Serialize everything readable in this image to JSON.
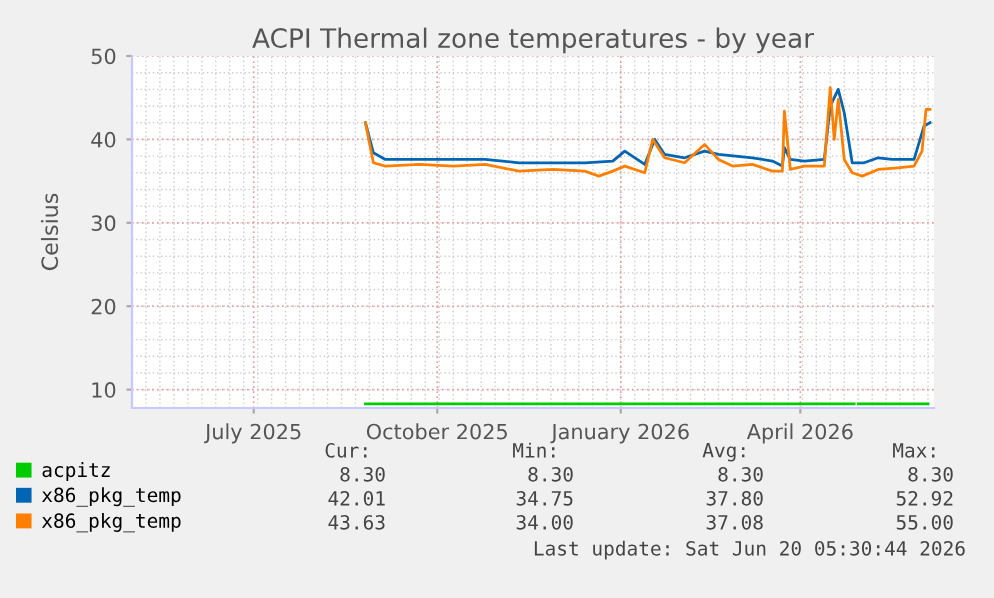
{
  "chart_data": {
    "type": "line",
    "title": "ACPI Thermal zone temperatures - by year",
    "ylabel": "Celsius",
    "xlim": [
      "2025-05-01",
      "2026-06-07"
    ],
    "xticks": [
      {
        "value": "2025-07-01",
        "label": "July 2025"
      },
      {
        "value": "2025-10-01",
        "label": "October 2025"
      },
      {
        "value": "2026-01-01",
        "label": "January 2026"
      },
      {
        "value": "2026-04-01",
        "label": "April 2026"
      }
    ],
    "ylim": [
      7.8,
      50
    ],
    "yticks": [
      10,
      20,
      30,
      40,
      50
    ],
    "grid": true,
    "legend": "bottom",
    "marker": "none",
    "line_style": "solid",
    "series": [
      {
        "name": "acpitz",
        "color": "#00cc00",
        "x": [
          "2025-08-26",
          "2026-04-28",
          "2026-04-29",
          "2026-04-30",
          "2026-06-04"
        ],
        "values": [
          8.3,
          8.3,
          null,
          8.3,
          8.3
        ]
      },
      {
        "name": "x86_pkg_temp",
        "color": "#0066b3",
        "x": [
          "2025-08-26",
          "2025-08-30",
          "2025-09-05",
          "2025-09-22",
          "2025-10-09",
          "2025-10-25",
          "2025-11-11",
          "2025-11-28",
          "2025-12-14",
          "2025-12-28",
          "2026-01-03",
          "2026-01-13",
          "2026-01-18",
          "2026-01-23",
          "2026-02-02",
          "2026-02-12",
          "2026-02-19",
          "2026-03-08",
          "2026-03-18",
          "2026-03-23",
          "2026-03-24",
          "2026-03-27",
          "2026-04-03",
          "2026-04-13",
          "2026-04-16",
          "2026-04-20",
          "2026-04-23",
          "2026-04-27",
          "2026-05-03",
          "2026-05-10",
          "2026-05-17",
          "2026-05-28",
          "2026-06-02",
          "2026-06-05"
        ],
        "values": [
          42,
          38.4,
          37.6,
          37.6,
          37.6,
          37.6,
          37.2,
          37.2,
          37.2,
          37.4,
          38.6,
          37.0,
          40,
          38.2,
          37.8,
          38.6,
          38.2,
          37.8,
          37.4,
          36.8,
          39,
          37.6,
          37.4,
          37.6,
          44,
          46,
          43.2,
          37.2,
          37.2,
          37.8,
          37.6,
          37.6,
          41.6,
          42
        ]
      },
      {
        "name": "x86_pkg_temp",
        "color": "#ff8000",
        "x": [
          "2025-08-26",
          "2025-08-30",
          "2025-09-05",
          "2025-09-22",
          "2025-10-09",
          "2025-10-25",
          "2025-11-11",
          "2025-11-28",
          "2025-12-14",
          "2025-12-21",
          "2025-12-28",
          "2026-01-03",
          "2026-01-13",
          "2026-01-17",
          "2026-01-23",
          "2026-02-02",
          "2026-02-12",
          "2026-02-19",
          "2026-02-26",
          "2026-03-08",
          "2026-03-18",
          "2026-03-23",
          "2026-03-24",
          "2026-03-27",
          "2026-04-03",
          "2026-04-13",
          "2026-04-16",
          "2026-04-18",
          "2026-04-20",
          "2026-04-23",
          "2026-04-27",
          "2026-05-02",
          "2026-05-10",
          "2026-05-20",
          "2026-05-28",
          "2026-06-01",
          "2026-06-03",
          "2026-06-05"
        ],
        "values": [
          42,
          37.2,
          36.8,
          37.0,
          36.8,
          37.0,
          36.2,
          36.4,
          36.2,
          35.6,
          36.2,
          36.8,
          36,
          40,
          37.8,
          37.2,
          39.4,
          37.6,
          36.8,
          37,
          36.2,
          36.2,
          43.4,
          36.4,
          36.8,
          36.8,
          46.2,
          40,
          44.8,
          37.6,
          36,
          35.6,
          36.4,
          36.6,
          36.8,
          38.6,
          43.6,
          43.6
        ]
      }
    ],
    "annotations": [
      "Cur:",
      "Min:",
      "Avg:",
      "Max:",
      "8.30",
      "8.30",
      "8.30",
      "8.30",
      "42.01",
      "34.75",
      "37.80",
      "52.92",
      "43.63",
      "34.00",
      "37.08",
      "55.00",
      "Last update: Sat Jun 20 05:30:44 2026"
    ]
  }
}
